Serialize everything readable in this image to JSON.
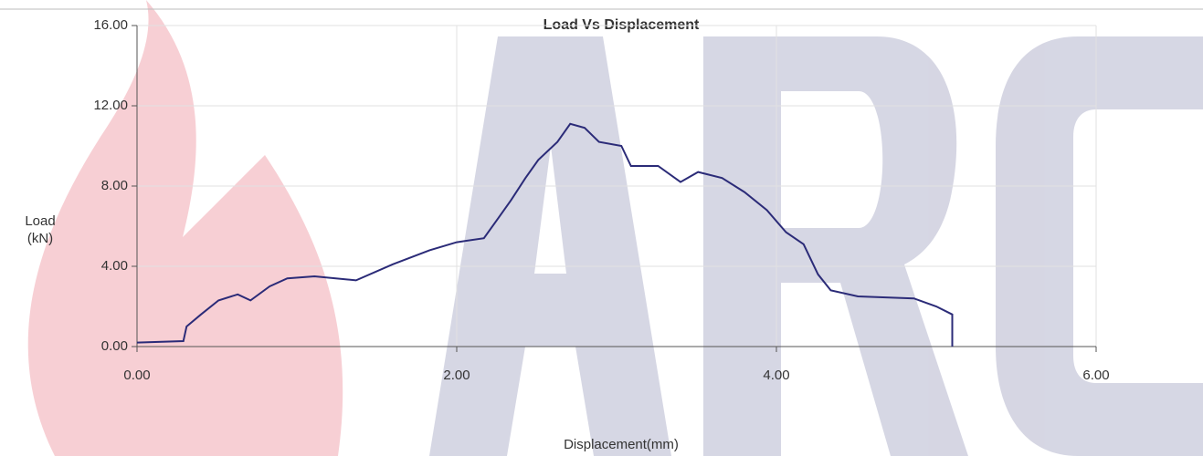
{
  "chart_data": {
    "type": "line",
    "title": "Load Vs Displacement",
    "x_label": "Displacement(mm)",
    "y_label": [
      "Load",
      "(kN)"
    ],
    "x": [
      0,
      0.29,
      0.31,
      0.4,
      0.51,
      0.63,
      0.71,
      0.83,
      0.94,
      1.11,
      1.37,
      1.6,
      1.83,
      2.0,
      2.17,
      2.26,
      2.34,
      2.43,
      2.51,
      2.63,
      2.71,
      2.8,
      2.89,
      3.03,
      3.09,
      3.26,
      3.4,
      3.51,
      3.66,
      3.8,
      3.94,
      4.06,
      4.17,
      4.26,
      4.34,
      4.51,
      4.86,
      5.0,
      5.1,
      5.1
    ],
    "series": [
      {
        "name": "Load",
        "color": "#2b2b78",
        "values": [
          0.2,
          0.27,
          1.0,
          1.6,
          2.3,
          2.6,
          2.3,
          3.0,
          3.4,
          3.5,
          3.3,
          4.1,
          4.8,
          5.2,
          5.4,
          6.4,
          7.3,
          8.4,
          9.3,
          10.2,
          11.1,
          10.9,
          10.2,
          10.0,
          9.0,
          9.0,
          8.2,
          8.7,
          8.4,
          7.7,
          6.8,
          5.7,
          5.1,
          3.6,
          2.8,
          2.5,
          2.4,
          2.0,
          1.6,
          0
        ]
      }
    ],
    "xlim": [
      0,
      6
    ],
    "xticks": [
      {
        "value": 0,
        "label": "0.00"
      },
      {
        "value": 2,
        "label": "2.00"
      },
      {
        "value": 4,
        "label": "4.00"
      },
      {
        "value": 6,
        "label": "6.00"
      }
    ],
    "ylim": [
      0,
      16
    ],
    "yticks": [
      {
        "value": 0,
        "label": "0.00"
      },
      {
        "value": 4,
        "label": "4.00"
      },
      {
        "value": 8,
        "label": "8.00"
      },
      {
        "value": 12,
        "label": "12.00"
      },
      {
        "value": 16,
        "label": "16.00"
      }
    ],
    "grid": true
  }
}
